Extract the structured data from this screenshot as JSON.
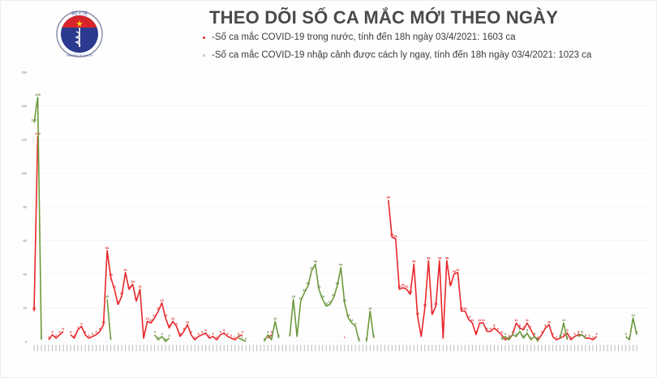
{
  "header": {
    "logo_text_top": "BỘ Y TẾ",
    "logo_text_bottom": "MINISTRY OF HEALTH",
    "title": "THEO DÕI SỐ CA MẮC MỚI THEO NGÀY",
    "legend": [
      {
        "label": "-Số ca mắc COVID-19 trong nước, tính đến 18h ngày 03/4/2021: 1603 ca",
        "color": "#e8262a"
      },
      {
        "label": "-Số ca mắc COVID-19 nhập cảnh được cách ly ngay, tính đến 18h ngày 03/4/2021: 1023 ca",
        "color": "#c7c7c7"
      }
    ]
  },
  "chart_data": {
    "type": "line",
    "title": "THEO DÕI SỐ CA MẮC MỚI THEO NGÀY",
    "xlabel": "",
    "ylabel": "",
    "ylim": [
      0,
      160
    ],
    "yticks": [
      0,
      20,
      40,
      60,
      80,
      100,
      120,
      140,
      160
    ],
    "grid": true,
    "legend_position": "top",
    "n_points": 166,
    "series": [
      {
        "name": "Số ca mắc COVID-19 trong nước",
        "color": "#e8262a",
        "points": [
          [
            0,
            18
          ],
          [
            1,
            122
          ],
          null,
          [
            4,
            1
          ],
          [
            5,
            4
          ],
          [
            6,
            2
          ],
          [
            7,
            4
          ],
          [
            8,
            6
          ],
          null,
          [
            10,
            4
          ],
          [
            11,
            2
          ],
          [
            12,
            7
          ],
          [
            13,
            9
          ],
          [
            14,
            4
          ],
          [
            15,
            2
          ],
          [
            16,
            3
          ],
          [
            17,
            4
          ],
          [
            18,
            6
          ],
          [
            19,
            10
          ],
          [
            20,
            54
          ],
          [
            21,
            38
          ],
          [
            22,
            31
          ],
          [
            23,
            22
          ],
          [
            24,
            27
          ],
          [
            25,
            41
          ],
          [
            26,
            31
          ],
          [
            27,
            34
          ],
          [
            28,
            24
          ],
          [
            29,
            31
          ],
          [
            30,
            2
          ],
          [
            31,
            12
          ],
          [
            32,
            11
          ],
          [
            33,
            14
          ],
          [
            34,
            18
          ],
          [
            35,
            23
          ],
          [
            36,
            14
          ],
          [
            37,
            8
          ],
          [
            38,
            12
          ],
          [
            39,
            9
          ],
          [
            40,
            3
          ],
          [
            41,
            6
          ],
          [
            42,
            10
          ],
          [
            43,
            4
          ],
          [
            44,
            1
          ],
          [
            45,
            3
          ],
          [
            46,
            4
          ],
          [
            47,
            5
          ],
          [
            48,
            2
          ],
          [
            49,
            3
          ],
          [
            50,
            1
          ],
          [
            51,
            4
          ],
          [
            52,
            5
          ],
          [
            53,
            3
          ],
          [
            54,
            2
          ],
          [
            55,
            1
          ],
          [
            56,
            3
          ],
          [
            57,
            4
          ],
          null,
          [
            64,
            2
          ],
          [
            65,
            4
          ],
          null,
          [
            85,
            1
          ],
          null,
          [
            97,
            84
          ],
          [
            98,
            62
          ],
          [
            99,
            61
          ],
          [
            100,
            31
          ],
          [
            101,
            32
          ],
          [
            102,
            31
          ],
          [
            103,
            28
          ],
          [
            104,
            46
          ],
          [
            105,
            15
          ],
          [
            106,
            3
          ],
          [
            107,
            20
          ],
          [
            108,
            48
          ],
          [
            109,
            16
          ],
          [
            110,
            21
          ],
          [
            111,
            48
          ],
          [
            112,
            2
          ],
          [
            113,
            48
          ],
          [
            114,
            33
          ],
          [
            115,
            40
          ],
          [
            116,
            41
          ],
          [
            117,
            18
          ],
          [
            118,
            18
          ],
          [
            119,
            13
          ],
          [
            120,
            11
          ],
          [
            121,
            4
          ],
          [
            122,
            11
          ],
          [
            123,
            11
          ],
          [
            124,
            6
          ],
          [
            125,
            6
          ],
          [
            126,
            8
          ],
          [
            127,
            6
          ],
          [
            128,
            4
          ],
          [
            129,
            1
          ],
          [
            130,
            2
          ],
          [
            131,
            4
          ],
          [
            132,
            11
          ],
          [
            133,
            8
          ],
          [
            134,
            7
          ],
          [
            135,
            11
          ],
          [
            136,
            7
          ],
          [
            137,
            3
          ],
          [
            138,
            1
          ],
          [
            139,
            4
          ],
          [
            140,
            8
          ],
          [
            141,
            10
          ],
          [
            142,
            3
          ],
          [
            143,
            1
          ],
          [
            144,
            2
          ],
          [
            145,
            3
          ],
          [
            146,
            5
          ],
          [
            147,
            1
          ],
          [
            148,
            3
          ],
          [
            149,
            4
          ],
          [
            150,
            4
          ],
          [
            151,
            2
          ],
          [
            152,
            2
          ],
          [
            153,
            1
          ],
          [
            154,
            3
          ]
        ]
      },
      {
        "name": "Số ca mắc COVID-19 nhập cảnh được cách ly ngay",
        "color": "#6b9a3a",
        "points": [
          [
            0,
            130
          ],
          [
            1,
            145
          ],
          [
            2,
            1
          ],
          null,
          [
            20,
            25
          ],
          [
            21,
            1
          ],
          null,
          [
            33,
            4
          ],
          [
            34,
            1
          ],
          [
            35,
            3
          ],
          [
            36,
            0
          ],
          [
            37,
            2
          ],
          null,
          [
            56,
            2
          ],
          [
            57,
            1
          ],
          [
            58,
            0
          ],
          null,
          [
            63,
            0
          ],
          [
            64,
            4
          ],
          [
            65,
            1
          ],
          [
            66,
            12
          ],
          [
            67,
            2
          ],
          null,
          [
            70,
            3
          ],
          [
            71,
            25
          ],
          [
            72,
            3
          ],
          [
            73,
            24
          ],
          [
            74,
            29
          ],
          [
            75,
            33
          ],
          [
            76,
            42
          ],
          [
            77,
            46
          ],
          [
            78,
            31
          ],
          [
            79,
            25
          ],
          [
            80,
            21
          ],
          [
            81,
            22
          ],
          [
            82,
            26
          ],
          [
            83,
            33
          ],
          [
            84,
            44
          ],
          [
            85,
            23
          ],
          [
            86,
            14
          ],
          [
            87,
            11
          ],
          [
            88,
            9
          ],
          [
            89,
            0
          ],
          null,
          [
            91,
            0
          ],
          [
            92,
            18
          ],
          [
            93,
            2
          ],
          null,
          [
            128,
            1
          ],
          [
            129,
            3
          ],
          [
            130,
            1
          ],
          [
            131,
            4
          ],
          [
            132,
            3
          ],
          [
            133,
            6
          ],
          [
            134,
            2
          ],
          [
            135,
            5
          ],
          [
            136,
            1
          ],
          [
            137,
            3
          ],
          [
            138,
            0
          ],
          null,
          [
            144,
            2
          ],
          [
            145,
            11
          ],
          [
            146,
            1
          ],
          null,
          [
            149,
            3
          ],
          [
            150,
            4
          ],
          [
            151,
            2
          ],
          null,
          [
            162,
            3
          ],
          [
            163,
            1
          ],
          [
            164,
            14
          ],
          [
            165,
            4
          ]
        ]
      }
    ]
  }
}
